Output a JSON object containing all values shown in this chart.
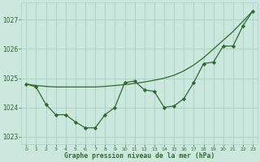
{
  "x": [
    0,
    1,
    2,
    3,
    4,
    5,
    6,
    7,
    8,
    9,
    10,
    11,
    12,
    13,
    14,
    15,
    16,
    17,
    18,
    19,
    20,
    21,
    22,
    23
  ],
  "line_dotted": [
    1024.8,
    1024.7,
    1024.1,
    1023.75,
    1023.75,
    1023.5,
    1023.3,
    1023.3,
    1023.75,
    1024.0,
    1024.85,
    1024.9,
    1024.6,
    1024.55,
    1024.0,
    1024.05,
    1024.3,
    1024.85,
    1025.5,
    1025.55,
    1026.1,
    1026.1,
    1026.8,
    1027.3
  ],
  "line_smooth": [
    1024.8,
    1024.75,
    1024.72,
    1024.7,
    1024.7,
    1024.7,
    1024.7,
    1024.7,
    1024.72,
    1024.75,
    1024.78,
    1024.82,
    1024.87,
    1024.93,
    1025.0,
    1025.1,
    1025.25,
    1025.45,
    1025.7,
    1026.0,
    1026.3,
    1026.6,
    1026.95,
    1027.3
  ],
  "bg_color": "#cce8de",
  "grid_color": "#aad4c8",
  "line_color": "#2d6b2d",
  "xlabel": "Graphe pression niveau de la mer (hPa)",
  "ylim": [
    1022.75,
    1027.6
  ],
  "yticks": [
    1023,
    1024,
    1025,
    1026,
    1027
  ],
  "xticks": [
    0,
    1,
    2,
    3,
    4,
    5,
    6,
    7,
    8,
    9,
    10,
    11,
    12,
    13,
    14,
    15,
    16,
    17,
    18,
    19,
    20,
    21,
    22,
    23
  ]
}
